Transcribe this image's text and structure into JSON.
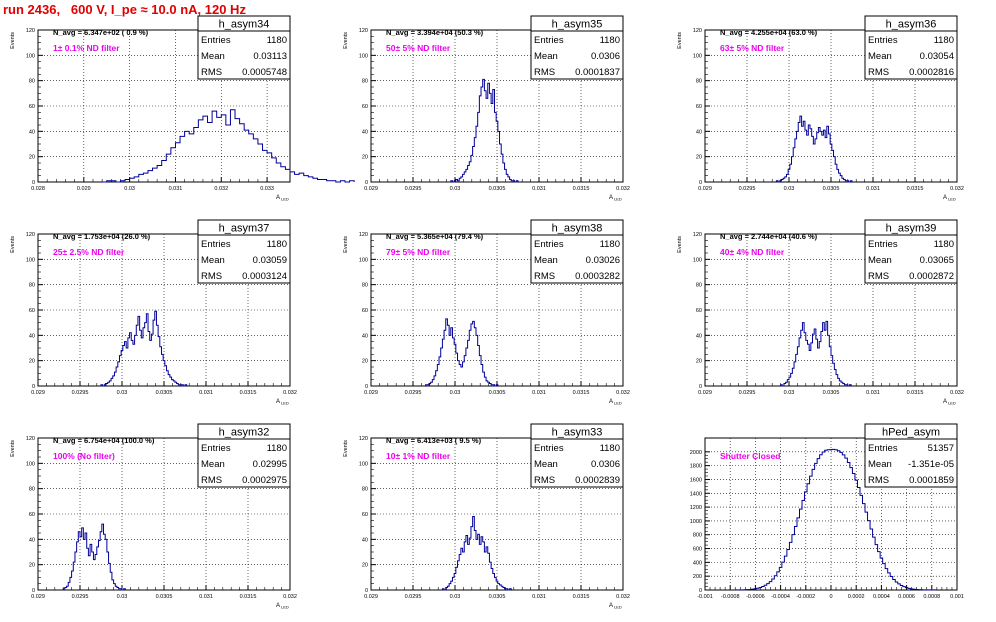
{
  "page_title": "run 2436,   600 V, I_pe ≈ 10.0 nA, 120 Hz",
  "colors": {
    "title": "#e00000",
    "label": "#ee00ee",
    "hist": "#000099"
  },
  "chart_data": [
    {
      "type": "histogram",
      "name": "h_asym34",
      "navg": "N_avg = 6.347e+02 ( 0.9 %)",
      "filter": "1± 0.1% ND filter",
      "stats": [
        [
          "Entries",
          "1180"
        ],
        [
          "Mean",
          "0.03113"
        ],
        [
          "RMS",
          "0.0005748"
        ]
      ],
      "ylabel": "Events",
      "xlabel": "A_LED",
      "xlim": [
        0.028,
        0.0335
      ],
      "ylim": [
        0,
        120
      ],
      "xticks": [
        0.028,
        0.029,
        0.03,
        0.031,
        0.032,
        0.033
      ],
      "xtick_labels": [
        "0.028",
        "0.029",
        "0.03",
        "0.031",
        "0.032",
        "0.033"
      ],
      "yticks": [
        0,
        20,
        40,
        60,
        80,
        100,
        120
      ],
      "bins": {
        "start": 0.0294,
        "width": 0.0001,
        "counts": [
          0,
          1,
          1,
          0,
          1,
          2,
          3,
          4,
          6,
          7,
          9,
          11,
          13,
          17,
          22,
          27,
          31,
          36,
          40,
          38,
          43,
          49,
          52,
          47,
          56,
          51,
          53,
          45,
          57,
          50,
          46,
          41,
          38,
          34,
          30,
          25,
          23,
          19,
          15,
          12,
          10,
          8,
          6,
          7,
          5,
          4,
          3,
          2,
          2,
          1,
          1,
          0,
          1,
          0,
          1
        ]
      }
    },
    {
      "type": "histogram",
      "name": "h_asym35",
      "navg": "N_avg = 3.394e+04 (50.3 %)",
      "filter": "50± 5% ND filter",
      "stats": [
        [
          "Entries",
          "1180"
        ],
        [
          "Mean",
          "0.0306"
        ],
        [
          "RMS",
          "0.0001837"
        ]
      ],
      "ylabel": "Events",
      "xlabel": "A_LED",
      "xlim": [
        0.029,
        0.032
      ],
      "ylim": [
        0,
        120
      ],
      "xticks": [
        0.029,
        0.0295,
        0.03,
        0.0305,
        0.031,
        0.0315,
        0.032
      ],
      "xtick_labels": [
        "0.029",
        "0.0295",
        "0.03",
        "0.0305",
        "0.031",
        "0.0315",
        "0.032"
      ],
      "yticks": [
        0,
        20,
        40,
        60,
        80,
        100,
        120
      ],
      "bins": {
        "start": 0.02995,
        "width": 2e-05,
        "counts": [
          1,
          0,
          1,
          2,
          1,
          3,
          4,
          6,
          8,
          10,
          13,
          16,
          21,
          28,
          35,
          44,
          55,
          68,
          75,
          81,
          72,
          66,
          78,
          70,
          62,
          73,
          55,
          48,
          40,
          30,
          22,
          15,
          10,
          6,
          4,
          2,
          1,
          1,
          0,
          1
        ]
      }
    },
    {
      "type": "histogram",
      "name": "h_asym36",
      "navg": "N_avg = 4.255e+04 (63.0 %)",
      "filter": "63± 5% ND filter",
      "stats": [
        [
          "Entries",
          "1180"
        ],
        [
          "Mean",
          "0.03054"
        ],
        [
          "RMS",
          "0.0002816"
        ]
      ],
      "ylabel": "Events",
      "xlabel": "A_LED",
      "xlim": [
        0.029,
        0.032
      ],
      "ylim": [
        0,
        120
      ],
      "xticks": [
        0.029,
        0.0295,
        0.03,
        0.0305,
        0.031,
        0.0315,
        0.032
      ],
      "xtick_labels": [
        "0.029",
        "0.0295",
        "0.03",
        "0.0305",
        "0.031",
        "0.0315",
        "0.032"
      ],
      "yticks": [
        0,
        20,
        40,
        60,
        80,
        100,
        120
      ],
      "bins": {
        "start": 0.02985,
        "width": 2e-05,
        "counts": [
          1,
          0,
          1,
          2,
          3,
          4,
          6,
          10,
          14,
          20,
          27,
          34,
          40,
          47,
          52,
          44,
          48,
          41,
          37,
          45,
          42,
          36,
          30,
          34,
          39,
          43,
          40,
          37,
          41,
          35,
          44,
          38,
          30,
          25,
          20,
          14,
          10,
          7,
          5,
          3,
          2,
          1,
          1,
          0,
          1
        ]
      }
    },
    {
      "type": "histogram",
      "name": "h_asym37",
      "navg": "N_avg = 1.753e+04 (26.0 %)",
      "filter": "25± 2.5% ND filter",
      "stats": [
        [
          "Entries",
          "1180"
        ],
        [
          "Mean",
          "0.03059"
        ],
        [
          "RMS",
          "0.0003124"
        ]
      ],
      "ylabel": "Events",
      "xlabel": "A_LED",
      "xlim": [
        0.029,
        0.032
      ],
      "ylim": [
        0,
        120
      ],
      "xticks": [
        0.029,
        0.0295,
        0.03,
        0.0305,
        0.031,
        0.0315,
        0.032
      ],
      "xtick_labels": [
        "0.029",
        "0.0295",
        "0.03",
        "0.0305",
        "0.031",
        "0.0315",
        "0.032"
      ],
      "yticks": [
        0,
        20,
        40,
        60,
        80,
        100,
        120
      ],
      "bins": {
        "start": 0.02975,
        "width": 2e-05,
        "counts": [
          1,
          0,
          1,
          2,
          3,
          4,
          6,
          8,
          11,
          15,
          19,
          24,
          28,
          32,
          35,
          30,
          38,
          42,
          36,
          33,
          40,
          48,
          55,
          44,
          38,
          46,
          50,
          57,
          43,
          36,
          41,
          52,
          59,
          48,
          39,
          31,
          25,
          20,
          16,
          12,
          9,
          7,
          5,
          4,
          3,
          2,
          1,
          1,
          1,
          0,
          1
        ]
      }
    },
    {
      "type": "histogram",
      "name": "h_asym38",
      "navg": "N_avg = 5.365e+04 (79.4 %)",
      "filter": "79± 5% ND filter",
      "stats": [
        [
          "Entries",
          "1180"
        ],
        [
          "Mean",
          "0.03026"
        ],
        [
          "RMS",
          "0.0003282"
        ]
      ],
      "ylabel": "Events",
      "xlabel": "A_LED",
      "xlim": [
        0.029,
        0.032
      ],
      "ylim": [
        0,
        120
      ],
      "xticks": [
        0.029,
        0.0295,
        0.03,
        0.0305,
        0.031,
        0.0315,
        0.032
      ],
      "xtick_labels": [
        "0.029",
        "0.0295",
        "0.03",
        "0.0305",
        "0.031",
        "0.0315",
        "0.032"
      ],
      "yticks": [
        0,
        20,
        40,
        60,
        80,
        100,
        120
      ],
      "bins": {
        "start": 0.02965,
        "width": 2e-05,
        "counts": [
          1,
          1,
          2,
          3,
          5,
          8,
          12,
          17,
          23,
          30,
          37,
          44,
          53,
          48,
          40,
          46,
          38,
          33,
          26,
          20,
          17,
          15,
          19,
          24,
          30,
          36,
          44,
          49,
          51,
          46,
          40,
          32,
          24,
          17,
          11,
          7,
          4,
          3,
          2,
          1,
          1,
          0,
          1
        ]
      }
    },
    {
      "type": "histogram",
      "name": "h_asym39",
      "navg": "N_avg = 2.744e+04 (40.6 %)",
      "filter": "40± 4% ND filter",
      "stats": [
        [
          "Entries",
          "1180"
        ],
        [
          "Mean",
          "0.03065"
        ],
        [
          "RMS",
          "0.0002872"
        ]
      ],
      "ylabel": "Events",
      "xlabel": "A_LED",
      "xlim": [
        0.029,
        0.032
      ],
      "ylim": [
        0,
        120
      ],
      "xticks": [
        0.029,
        0.0295,
        0.03,
        0.0305,
        0.031,
        0.0315,
        0.032
      ],
      "xtick_labels": [
        "0.029",
        "0.0295",
        "0.03",
        "0.0305",
        "0.031",
        "0.0315",
        "0.032"
      ],
      "yticks": [
        0,
        20,
        40,
        60,
        80,
        100,
        120
      ],
      "bins": {
        "start": 0.0299,
        "width": 2e-05,
        "counts": [
          1,
          0,
          2,
          3,
          5,
          7,
          10,
          14,
          19,
          25,
          31,
          38,
          44,
          50,
          42,
          36,
          33,
          28,
          34,
          41,
          45,
          37,
          30,
          35,
          43,
          50,
          44,
          51,
          40,
          31,
          24,
          18,
          13,
          9,
          6,
          4,
          3,
          2,
          1,
          1,
          0,
          1
        ]
      }
    },
    {
      "type": "histogram",
      "name": "h_asym32",
      "navg": "N_avg = 6.754e+04 (100.0 %)",
      "filter": "100% (No filter)",
      "stats": [
        [
          "Entries",
          "1180"
        ],
        [
          "Mean",
          "0.02995"
        ],
        [
          "RMS",
          "0.0002975"
        ]
      ],
      "ylabel": "Events",
      "xlabel": "A_LED",
      "xlim": [
        0.029,
        0.032
      ],
      "ylim": [
        0,
        120
      ],
      "xticks": [
        0.029,
        0.0295,
        0.03,
        0.0305,
        0.031,
        0.0315,
        0.032
      ],
      "xtick_labels": [
        "0.029",
        "0.0295",
        "0.03",
        "0.0305",
        "0.031",
        "0.0315",
        "0.032"
      ],
      "yticks": [
        0,
        20,
        40,
        60,
        80,
        100,
        120
      ],
      "bins": {
        "start": 0.0293,
        "width": 2e-05,
        "counts": [
          1,
          2,
          3,
          6,
          10,
          15,
          22,
          30,
          38,
          46,
          42,
          49,
          40,
          45,
          33,
          27,
          36,
          30,
          24,
          28,
          34,
          39,
          46,
          52,
          44,
          40,
          30,
          21,
          14,
          8,
          5,
          3,
          2,
          1,
          1,
          0,
          1
        ]
      }
    },
    {
      "type": "histogram",
      "name": "h_asym33",
      "navg": "N_avg = 6.413e+03 ( 9.5 %)",
      "filter": "10± 1% ND filter",
      "stats": [
        [
          "Entries",
          "1180"
        ],
        [
          "Mean",
          "0.0306"
        ],
        [
          "RMS",
          "0.0002839"
        ]
      ],
      "ylabel": "Events",
      "xlabel": "A_LED",
      "xlim": [
        0.029,
        0.032
      ],
      "ylim": [
        0,
        120
      ],
      "xticks": [
        0.029,
        0.0295,
        0.03,
        0.0305,
        0.031,
        0.0315,
        0.032
      ],
      "xtick_labels": [
        "0.029",
        "0.0295",
        "0.03",
        "0.0305",
        "0.031",
        "0.0315",
        "0.032"
      ],
      "yticks": [
        0,
        20,
        40,
        60,
        80,
        100,
        120
      ],
      "bins": {
        "start": 0.02985,
        "width": 2e-05,
        "counts": [
          1,
          0,
          2,
          3,
          5,
          7,
          10,
          13,
          18,
          23,
          28,
          33,
          30,
          38,
          43,
          36,
          41,
          50,
          58,
          47,
          40,
          44,
          36,
          42,
          38,
          30,
          34,
          29,
          22,
          17,
          13,
          10,
          7,
          5,
          4,
          3,
          2,
          1,
          1,
          0,
          1
        ]
      }
    },
    {
      "type": "histogram",
      "name": "hPed_asym",
      "navg": "",
      "filter": "Shutter Closed",
      "stats": [
        [
          "Entries",
          "51357"
        ],
        [
          "Mean",
          "-1.351e-05"
        ],
        [
          "RMS",
          "0.0001859"
        ]
      ],
      "ylabel": "",
      "xlabel": "",
      "xlim": [
        -0.001,
        0.001
      ],
      "ylim": [
        0,
        2200
      ],
      "xticks": [
        -0.001,
        -0.0008,
        -0.0006,
        -0.0004,
        -0.0002,
        0,
        0.0002,
        0.0004,
        0.0006,
        0.0008,
        0.001
      ],
      "xtick_labels": [
        "-0.001",
        "-0.0008",
        "-0.0006",
        "-0.0004",
        "-0.0002",
        "0",
        "0.0002",
        "0.0004",
        "0.0006",
        "0.0008",
        "0.001"
      ],
      "yticks": [
        0,
        200,
        400,
        600,
        800,
        1000,
        1200,
        1400,
        1600,
        1800,
        2000
      ],
      "bins": {
        "start": -0.00075,
        "width": 2e-05,
        "counts": [
          1,
          1,
          2,
          3,
          5,
          8,
          12,
          18,
          26,
          36,
          50,
          68,
          92,
          122,
          160,
          206,
          262,
          328,
          404,
          490,
          586,
          690,
          802,
          920,
          1044,
          1170,
          1296,
          1420,
          1538,
          1648,
          1746,
          1832,
          1902,
          1958,
          1998,
          2022,
          2030,
          2032,
          2036,
          2030,
          2016,
          1992,
          1956,
          1908,
          1846,
          1772,
          1686,
          1590,
          1484,
          1370,
          1250,
          1128,
          1004,
          882,
          766,
          656,
          556,
          464,
          382,
          310,
          248,
          196,
          152,
          116,
          88,
          66,
          48,
          34,
          24,
          16,
          11,
          7,
          5,
          3,
          2,
          1,
          1,
          0,
          1
        ]
      }
    }
  ]
}
